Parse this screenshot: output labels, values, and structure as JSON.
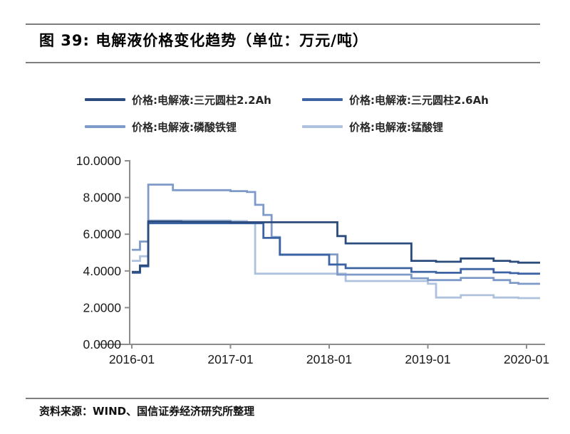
{
  "page": {
    "title": "图 39:  电解液价格变化趋势（单位：万元/吨）",
    "source_note": "资料来源：WIND、国信证券经济研究所整理"
  },
  "chart_data": {
    "type": "line",
    "line_style": "step-after",
    "title": "电解液价格变化趋势",
    "unit": "万元/吨",
    "grid": false,
    "legend_position": "top",
    "ylim": [
      0,
      10
    ],
    "y_ticks": [
      "0.0000",
      "2.0000",
      "4.0000",
      "6.0000",
      "8.0000",
      "10.0000"
    ],
    "y_tick_values": [
      0,
      2,
      4,
      6,
      8,
      10
    ],
    "x_tick_labels": [
      "2016-01",
      "2017-01",
      "2018-01",
      "2019-01",
      "2020-01"
    ],
    "x": [
      "2016-01",
      "2016-02",
      "2016-03",
      "2016-04",
      "2016-05",
      "2016-06",
      "2016-07",
      "2016-08",
      "2016-09",
      "2016-10",
      "2016-11",
      "2016-12",
      "2017-01",
      "2017-02",
      "2017-03",
      "2017-04",
      "2017-05",
      "2017-06",
      "2017-07",
      "2017-08",
      "2017-09",
      "2017-10",
      "2017-11",
      "2017-12",
      "2018-01",
      "2018-02",
      "2018-03",
      "2018-04",
      "2018-05",
      "2018-06",
      "2018-07",
      "2018-08",
      "2018-09",
      "2018-10",
      "2018-11",
      "2018-12",
      "2019-01",
      "2019-02",
      "2019-03",
      "2019-04",
      "2019-05",
      "2019-06",
      "2019-07",
      "2019-08",
      "2019-09",
      "2019-10",
      "2019-11",
      "2019-12",
      "2020-01"
    ],
    "series": [
      {
        "name": "价格:电解液:三元圆柱2.2Ah",
        "color": "#2a4b7c",
        "values": [
          3.95,
          4.3,
          6.7,
          6.7,
          6.7,
          6.7,
          6.68,
          6.68,
          6.68,
          6.68,
          6.68,
          6.68,
          6.65,
          6.65,
          6.65,
          6.65,
          6.65,
          6.65,
          6.65,
          6.65,
          6.65,
          6.65,
          6.65,
          6.65,
          6.65,
          5.9,
          5.5,
          5.5,
          5.5,
          5.5,
          5.5,
          5.5,
          5.5,
          5.5,
          4.55,
          4.55,
          4.55,
          4.5,
          4.5,
          4.5,
          4.68,
          4.68,
          4.68,
          4.68,
          4.55,
          4.55,
          4.5,
          4.45,
          4.45
        ]
      },
      {
        "name": "价格:电解液:三元圆柱2.6Ah",
        "color": "#3c64a4",
        "values": [
          3.9,
          4.25,
          6.6,
          6.6,
          6.6,
          6.6,
          6.6,
          6.6,
          6.6,
          6.6,
          6.6,
          6.6,
          6.6,
          6.6,
          6.6,
          6.6,
          5.8,
          5.8,
          4.88,
          4.88,
          4.88,
          4.88,
          4.88,
          4.88,
          4.35,
          4.35,
          4.15,
          4.15,
          4.15,
          4.15,
          4.15,
          4.15,
          4.15,
          4.15,
          3.95,
          3.95,
          3.95,
          3.9,
          3.9,
          3.9,
          4.1,
          4.1,
          4.1,
          4.1,
          3.92,
          3.92,
          3.88,
          3.85,
          3.85
        ]
      },
      {
        "name": "价格:电解液:磷酸铁锂",
        "color": "#7e9ac8",
        "values": [
          5.15,
          5.6,
          8.7,
          8.7,
          8.7,
          8.4,
          8.4,
          8.4,
          8.4,
          8.4,
          8.4,
          8.4,
          8.35,
          8.35,
          8.3,
          7.6,
          7.05,
          5.85,
          4.9,
          4.9,
          4.9,
          4.9,
          4.9,
          4.9,
          4.9,
          3.8,
          3.8,
          3.8,
          3.8,
          3.8,
          3.8,
          3.8,
          3.8,
          3.8,
          3.6,
          3.6,
          3.5,
          3.5,
          3.5,
          3.5,
          3.62,
          3.62,
          3.62,
          3.62,
          3.5,
          3.5,
          3.35,
          3.3,
          3.3
        ]
      },
      {
        "name": "价格:电解液:锰酸锂",
        "color": "#aec2de",
        "values": [
          4.55,
          4.8,
          6.75,
          6.75,
          6.75,
          6.75,
          6.75,
          6.75,
          6.75,
          6.75,
          6.75,
          6.75,
          6.72,
          6.72,
          6.6,
          3.85,
          3.85,
          3.85,
          3.85,
          3.85,
          3.85,
          3.85,
          3.85,
          3.85,
          3.85,
          3.85,
          3.45,
          3.45,
          3.45,
          3.45,
          3.45,
          3.45,
          3.45,
          3.45,
          3.45,
          3.45,
          3.3,
          2.55,
          2.55,
          2.55,
          2.68,
          2.68,
          2.68,
          2.68,
          2.55,
          2.55,
          2.55,
          2.52,
          2.52
        ]
      }
    ]
  }
}
